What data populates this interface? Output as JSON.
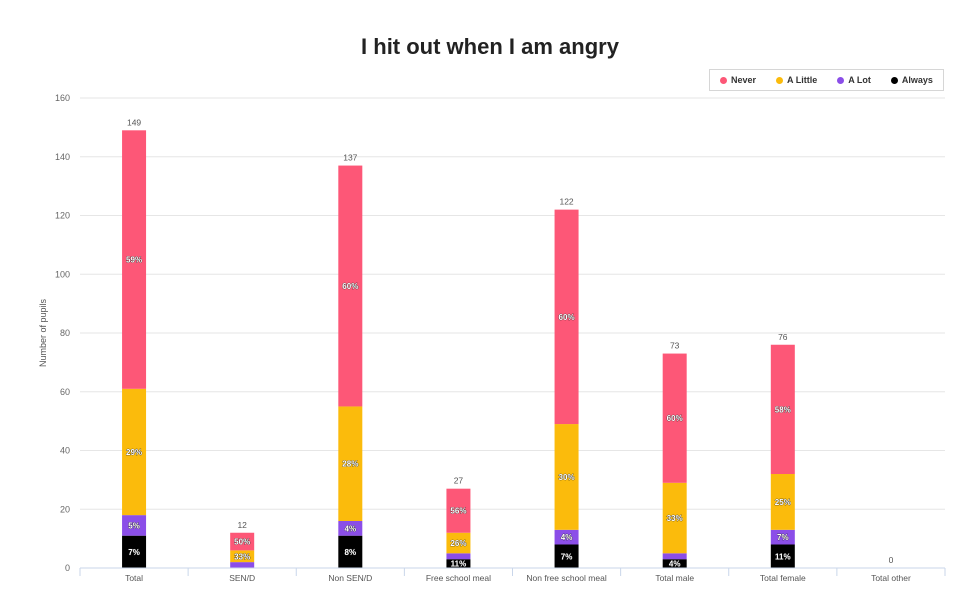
{
  "chart_data": {
    "type": "bar",
    "stacked": true,
    "title": "I hit out when I am angry",
    "xlabel": "",
    "ylabel": "Number of pupils",
    "ylim": [
      0,
      160
    ],
    "yticks": [
      0,
      20,
      40,
      60,
      80,
      100,
      120,
      140,
      160
    ],
    "grid": true,
    "legend_position": "top-right",
    "categories": [
      "Total",
      "SEN/D",
      "Non SEN/D",
      "Free school meal",
      "Non free school meal",
      "Total male",
      "Total female",
      "Total other"
    ],
    "totals": [
      149,
      12,
      137,
      27,
      122,
      73,
      76,
      0
    ],
    "series": [
      {
        "name": "Always",
        "color": "#000000",
        "values": [
          11,
          0,
          11,
          3,
          8,
          3,
          8,
          0
        ],
        "labels": [
          "7%",
          "",
          "8%",
          "11%",
          "7%",
          "4%",
          "11%",
          ""
        ]
      },
      {
        "name": "A Lot",
        "color": "#8b4ee8",
        "values": [
          7,
          2,
          5,
          2,
          5,
          2,
          5,
          0
        ],
        "labels": [
          "5%",
          "",
          "4%",
          "",
          "4%",
          "",
          "7%",
          ""
        ]
      },
      {
        "name": "A Little",
        "color": "#fbbb0c",
        "values": [
          43,
          4,
          39,
          7,
          36,
          24,
          19,
          0
        ],
        "labels": [
          "29%",
          "33%",
          "28%",
          "26%",
          "30%",
          "33%",
          "25%",
          ""
        ]
      },
      {
        "name": "Never",
        "color": "#fd5777",
        "values": [
          88,
          6,
          82,
          15,
          73,
          44,
          44,
          0
        ],
        "labels": [
          "59%",
          "50%",
          "60%",
          "56%",
          "60%",
          "60%",
          "58%",
          ""
        ]
      }
    ],
    "legend_order": [
      "Never",
      "A Little",
      "A Lot",
      "Always"
    ]
  }
}
